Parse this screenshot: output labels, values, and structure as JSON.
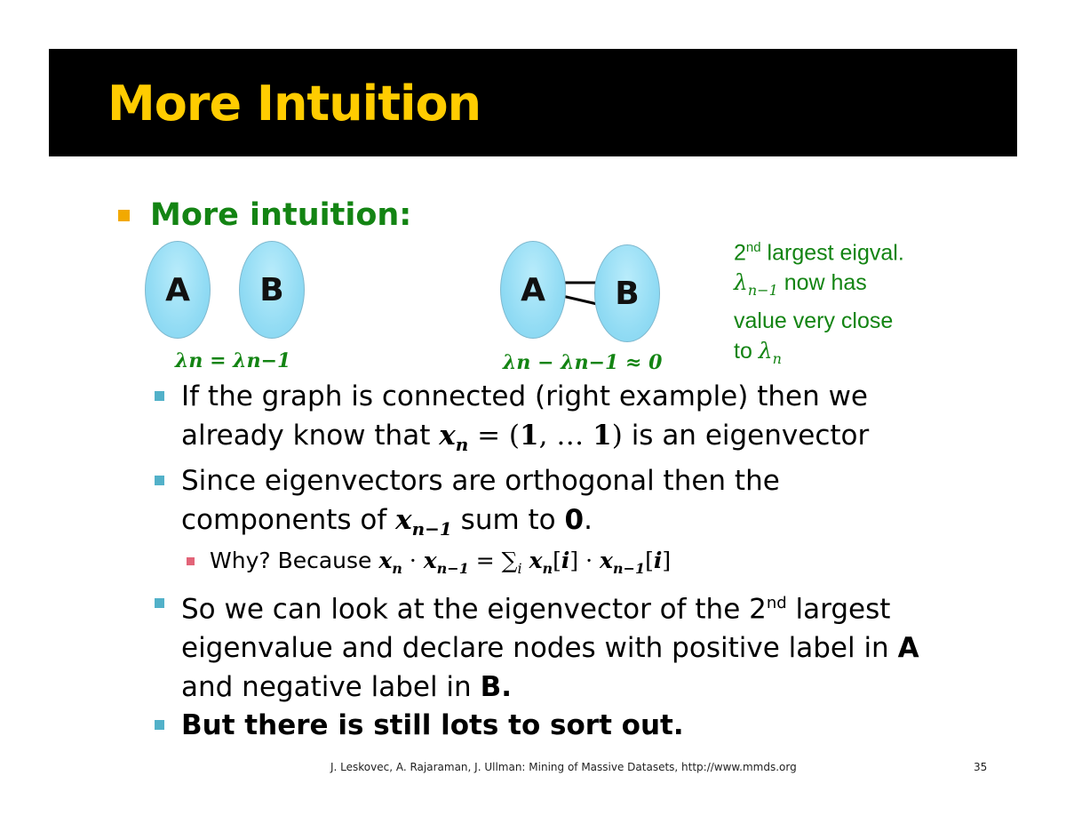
{
  "slide": {
    "title": "More Intuition",
    "heading": "More intuition:",
    "diagram_left": {
      "node_a": "A",
      "node_b": "B",
      "equation": "λn = λn−1"
    },
    "diagram_right": {
      "node_a": "A",
      "node_b": "B",
      "equation": "λn − λn−1 ≈ 0"
    },
    "note": {
      "line1_sup": "nd",
      "line1_num": "2",
      "line1_rest": " largest eigval.",
      "line2_rest": " now has",
      "line3": "value very close",
      "line4_pre": "to "
    },
    "bullets": {
      "b1_l1": "If the graph is connected (right  example) then we",
      "b1_l2_pre": "already know that ",
      "b1_l2_post": " is an eigenvector",
      "b2_l1": "Since eigenvectors are orthogonal then the",
      "b2_l2_pre": "components of ",
      "b2_l2_post": " sum to ",
      "b2_zero": "0",
      "b2_period": ".",
      "sub_pre": "Why? Because ",
      "b3_l1_pre": "So we can look at the eigenvector of the 2",
      "b3_sup": "nd",
      "b3_l1_post": " largest",
      "b3_l2_pre": "eigenvalue and declare nodes with positive label in ",
      "b3_l2_A": "A",
      "b3_l3_pre": "and negative label in ",
      "b3_l3_B": "B.",
      "b4": "But there is still lots to sort out."
    },
    "footer": {
      "source": "J. Leskovec, A. Rajaraman, J. Ullman: Mining of Massive Datasets, http://www.mmds.org",
      "page_number": "35"
    }
  },
  "colors": {
    "title_bg": "#000000",
    "title_text": "#ffcc00",
    "heading_green": "#138413",
    "bullet_orange": "#f2a900",
    "bullet_blue": "#52b1c9",
    "bullet_pink": "#e26478",
    "node_fill": "#93dcf4"
  }
}
